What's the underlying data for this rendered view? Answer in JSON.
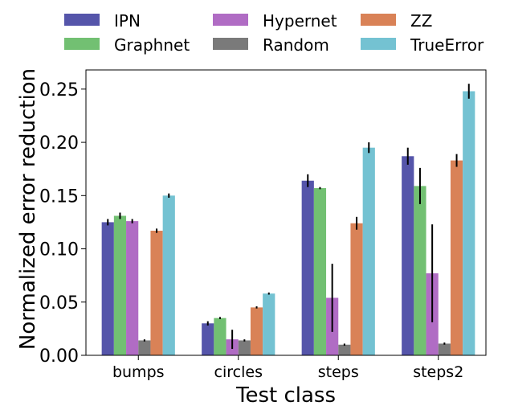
{
  "chart_data": {
    "type": "bar",
    "title": "",
    "xlabel": "Test class",
    "ylabel": "Normalized error reduction",
    "categories": [
      "bumps",
      "circles",
      "steps",
      "steps2"
    ],
    "ylim": [
      0,
      0.268
    ],
    "yticks": [
      0.0,
      0.05,
      0.1,
      0.15,
      0.2,
      0.25
    ],
    "ytick_labels": [
      "0.00",
      "0.05",
      "0.10",
      "0.15",
      "0.20",
      "0.25"
    ],
    "legend_position": "top",
    "error_bars": true,
    "series": [
      {
        "name": "IPN",
        "color": "#5555aa",
        "values": [
          0.125,
          0.03,
          0.164,
          0.187
        ],
        "errors": [
          0.003,
          0.002,
          0.006,
          0.008
        ]
      },
      {
        "name": "Graphnet",
        "color": "#72c072",
        "values": [
          0.131,
          0.035,
          0.157,
          0.159
        ],
        "errors": [
          0.003,
          0.001,
          0.001,
          0.017
        ]
      },
      {
        "name": "Hypernet",
        "color": "#b06cc4",
        "values": [
          0.126,
          0.015,
          0.054,
          0.077
        ],
        "errors": [
          0.002,
          0.009,
          0.032,
          0.046
        ]
      },
      {
        "name": "Random",
        "color": "#7a7a7a",
        "values": [
          0.014,
          0.014,
          0.01,
          0.011
        ],
        "errors": [
          0.001,
          0.001,
          0.001,
          0.001
        ]
      },
      {
        "name": "ZZ",
        "color": "#d98257",
        "values": [
          0.117,
          0.045,
          0.124,
          0.183
        ],
        "errors": [
          0.002,
          0.001,
          0.006,
          0.006
        ]
      },
      {
        "name": "TrueError",
        "color": "#74c2d2",
        "values": [
          0.15,
          0.058,
          0.195,
          0.248
        ],
        "errors": [
          0.002,
          0.001,
          0.005,
          0.007
        ]
      }
    ]
  }
}
